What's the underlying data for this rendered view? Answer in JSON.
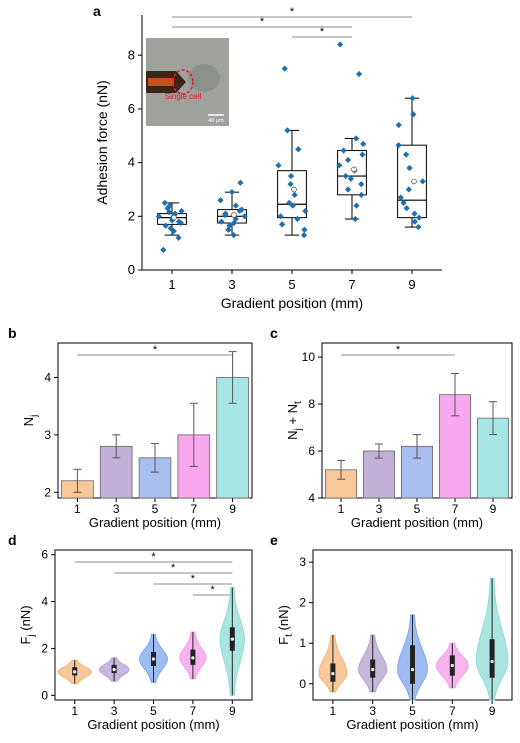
{
  "panels": {
    "a": "a",
    "b": "b",
    "c": "c",
    "d": "d",
    "e": "e"
  },
  "chart_data": [
    {
      "id": "a",
      "type": "box",
      "xlabel": "Gradient position (mm)",
      "ylabel": "Adhesion force (nN)",
      "categories": [
        "1",
        "3",
        "5",
        "7",
        "9"
      ],
      "ylim": [
        0,
        9.5
      ],
      "yticks": [
        0,
        2,
        4,
        6,
        8
      ],
      "boxes": [
        {
          "cat": "1",
          "q1": 1.7,
          "median": 1.95,
          "q3": 2.1,
          "whisker_low": 1.3,
          "whisker_high": 2.5,
          "mean": 1.95,
          "points": [
            0.75,
            1.2,
            1.45,
            1.55,
            1.65,
            1.75,
            1.8,
            1.85,
            1.9,
            1.95,
            2.0,
            2.05,
            2.1,
            2.15,
            2.2,
            2.3,
            2.4,
            2.5
          ]
        },
        {
          "cat": "3",
          "q1": 1.75,
          "median": 2.0,
          "q3": 2.25,
          "whisker_low": 1.3,
          "whisker_high": 2.9,
          "mean": 2.05,
          "points": [
            1.3,
            1.5,
            1.65,
            1.75,
            1.8,
            1.9,
            2.0,
            2.05,
            2.1,
            2.2,
            2.25,
            2.4,
            2.6,
            2.9,
            3.25
          ]
        },
        {
          "cat": "5",
          "q1": 1.95,
          "median": 2.45,
          "q3": 3.7,
          "whisker_low": 1.3,
          "whisker_high": 5.2,
          "mean": 3.0,
          "points": [
            1.3,
            1.5,
            1.7,
            1.9,
            2.0,
            2.2,
            2.4,
            2.5,
            2.8,
            3.2,
            3.5,
            3.9,
            4.5,
            5.2,
            7.5
          ]
        },
        {
          "cat": "7",
          "q1": 2.8,
          "median": 3.5,
          "q3": 4.45,
          "whisker_low": 1.9,
          "whisker_high": 4.9,
          "mean": 3.75,
          "points": [
            1.9,
            2.4,
            2.8,
            3.0,
            3.2,
            3.4,
            3.5,
            3.7,
            3.9,
            4.1,
            4.3,
            4.45,
            4.7,
            4.9,
            7.3,
            8.4
          ]
        },
        {
          "cat": "9",
          "q1": 1.95,
          "median": 2.6,
          "q3": 4.65,
          "whisker_low": 1.6,
          "whisker_high": 6.4,
          "mean": 3.3,
          "points": [
            1.6,
            1.8,
            1.95,
            2.1,
            2.3,
            2.5,
            2.7,
            3.0,
            3.3,
            3.8,
            4.3,
            4.65,
            5.4,
            5.8,
            6.4
          ]
        }
      ],
      "significance": [
        {
          "from": "1",
          "to": "9",
          "label": "*"
        },
        {
          "from": "1",
          "to": "7",
          "label": "*"
        },
        {
          "from": "5",
          "to": "7",
          "label": "*"
        }
      ],
      "inset": {
        "label": "Single cell",
        "scale_bar": "40 μm"
      },
      "color": "#1f6fae"
    },
    {
      "id": "b",
      "type": "bar",
      "xlabel": "Gradient position (mm)",
      "ylabel": "N",
      "ylabel_sub": "j",
      "categories": [
        "1",
        "3",
        "5",
        "7",
        "9"
      ],
      "values": [
        2.2,
        2.8,
        2.6,
        3.0,
        4.0
      ],
      "errors": [
        0.2,
        0.2,
        0.25,
        0.55,
        0.45
      ],
      "ylim": [
        1.9,
        4.6
      ],
      "yticks": [
        2,
        3,
        4
      ],
      "colors": [
        "#f8c89a",
        "#c2b0d6",
        "#a9bff0",
        "#f7a8ef",
        "#a8e6e6"
      ],
      "significance": [
        {
          "from": "1",
          "to": "9",
          "label": "*"
        }
      ]
    },
    {
      "id": "c",
      "type": "bar",
      "xlabel": "Gradient position (mm)",
      "ylabel": "N",
      "ylabel_sub": "j",
      "ylabel_mid": " + N",
      "ylabel_sub2": "t",
      "categories": [
        "1",
        "3",
        "5",
        "7",
        "9"
      ],
      "values": [
        5.2,
        6.0,
        6.2,
        8.4,
        7.4
      ],
      "errors": [
        0.4,
        0.3,
        0.5,
        0.9,
        0.7
      ],
      "ylim": [
        4,
        10.6
      ],
      "yticks": [
        4,
        6,
        8,
        10
      ],
      "colors": [
        "#f8c89a",
        "#c2b0d6",
        "#a9bff0",
        "#f7a8ef",
        "#a8e6e6"
      ],
      "significance": [
        {
          "from": "1",
          "to": "7",
          "label": "*"
        }
      ]
    },
    {
      "id": "d",
      "type": "violin",
      "xlabel": "Gradient position (mm)",
      "ylabel": "F",
      "ylabel_sub": "j",
      "ylabel_unit": " (nN)",
      "categories": [
        "1",
        "3",
        "5",
        "7",
        "9"
      ],
      "ylim": [
        -0.2,
        6.2
      ],
      "yticks": [
        0,
        2,
        4,
        6
      ],
      "violins": [
        {
          "cat": "1",
          "min": 0.5,
          "q1": 0.85,
          "median": 1.0,
          "q3": 1.2,
          "max": 1.5,
          "width": 0.85
        },
        {
          "cat": "3",
          "min": 0.6,
          "q1": 0.95,
          "median": 1.1,
          "q3": 1.3,
          "max": 1.6,
          "width": 0.75
        },
        {
          "cat": "5",
          "min": 0.55,
          "q1": 1.25,
          "median": 1.55,
          "q3": 1.85,
          "max": 2.6,
          "width": 0.7
        },
        {
          "cat": "7",
          "min": 0.7,
          "q1": 1.3,
          "median": 1.6,
          "q3": 1.95,
          "max": 2.7,
          "width": 0.65
        },
        {
          "cat": "9",
          "min": 0.0,
          "q1": 1.9,
          "median": 2.4,
          "q3": 2.9,
          "max": 4.6,
          "width": 0.6
        }
      ],
      "colors": [
        "#f5b57a",
        "#b3a0d0",
        "#7fa6ee",
        "#f59be8",
        "#8fdcd8"
      ],
      "significance": [
        {
          "from": "1",
          "to": "9",
          "label": "*"
        },
        {
          "from": "3",
          "to": "9",
          "label": "*"
        },
        {
          "from": "5",
          "to": "9",
          "label": "*"
        },
        {
          "from": "7",
          "to": "9",
          "label": "*"
        }
      ]
    },
    {
      "id": "e",
      "type": "violin",
      "xlabel": "Gradient position (mm)",
      "ylabel": "F",
      "ylabel_sub": "t",
      "ylabel_unit": " (nN)",
      "categories": [
        "1",
        "3",
        "5",
        "7",
        "9"
      ],
      "ylim": [
        -0.4,
        3.3
      ],
      "yticks": [
        0,
        1,
        2,
        3
      ],
      "violins": [
        {
          "cat": "1",
          "min": -0.2,
          "q1": 0.05,
          "median": 0.25,
          "q3": 0.5,
          "max": 1.2,
          "width": 0.7
        },
        {
          "cat": "3",
          "min": -0.2,
          "q1": 0.15,
          "median": 0.35,
          "q3": 0.6,
          "max": 1.2,
          "width": 0.7
        },
        {
          "cat": "5",
          "min": -0.4,
          "q1": 0.0,
          "median": 0.35,
          "q3": 0.95,
          "max": 1.7,
          "width": 0.75
        },
        {
          "cat": "7",
          "min": -0.1,
          "q1": 0.2,
          "median": 0.45,
          "q3": 0.7,
          "max": 1.0,
          "width": 0.8
        },
        {
          "cat": "9",
          "min": -0.4,
          "q1": 0.15,
          "median": 0.55,
          "q3": 1.1,
          "max": 2.6,
          "width": 0.8
        }
      ],
      "colors": [
        "#f5b57a",
        "#b3a0d0",
        "#7fa6ee",
        "#f59be8",
        "#8fdcd8"
      ]
    }
  ]
}
